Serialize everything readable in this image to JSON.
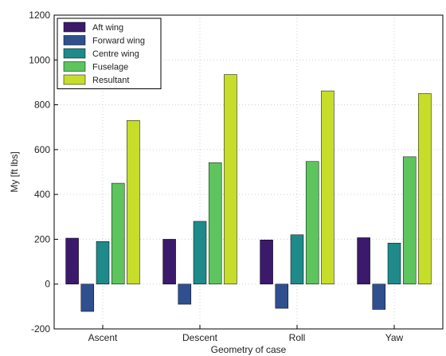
{
  "chart_data": {
    "type": "bar",
    "xlabel": "Geometry of case",
    "ylabel": "My [ft lbs]",
    "categories": [
      "Ascent",
      "Descent",
      "Roll",
      "Yaw"
    ],
    "ylim": [
      -200,
      1200
    ],
    "yticks": [
      -200,
      0,
      200,
      400,
      600,
      800,
      1000,
      1200
    ],
    "grid": true,
    "legend_position": "top-left",
    "series": [
      {
        "name": "Aft wing",
        "color": "#3b1a6b",
        "values": [
          205,
          200,
          197,
          207
        ]
      },
      {
        "name": "Forward wing",
        "color": "#2f4f8f",
        "values": [
          -122,
          -90,
          -108,
          -113
        ]
      },
      {
        "name": "Centre wing",
        "color": "#1f8a8a",
        "values": [
          190,
          280,
          220,
          183
        ]
      },
      {
        "name": "Fuselage",
        "color": "#5ec45e",
        "values": [
          450,
          542,
          547,
          568
        ]
      },
      {
        "name": "Resultant",
        "color": "#c6dd2a",
        "values": [
          730,
          935,
          862,
          850
        ]
      }
    ]
  }
}
